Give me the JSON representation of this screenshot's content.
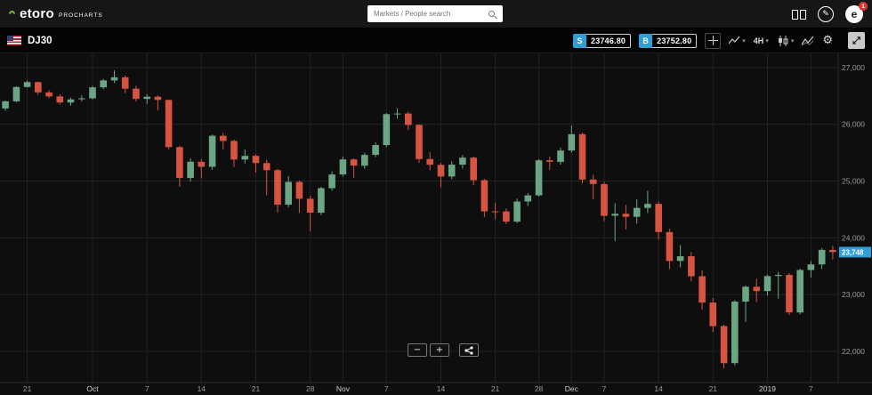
{
  "topbar": {
    "logo": "etoro",
    "logo_sub": "PROCHARTS",
    "search_placeholder": "Markets / People search",
    "profile_initial": "e",
    "notification_count": "1"
  },
  "instrument_bar": {
    "symbol": "DJ30",
    "sell_label": "S",
    "sell_price": "23746.80",
    "buy_label": "B",
    "buy_price": "23752.80",
    "timeframe": "4H"
  },
  "icons": {
    "chevron_down": "▾",
    "gear": "⚙",
    "expand": "⤢",
    "minus": "−",
    "plus": "+",
    "pencil": "✎"
  },
  "colors": {
    "accent_blue": "#2f9fd6",
    "up": "#6ba583",
    "down": "#d75442",
    "grid": "#232323",
    "bg": "#0e0e0e",
    "brand_green": "#6fbe44",
    "badge_red": "#e0362c"
  },
  "chart_data": {
    "type": "candlestick",
    "symbol": "DJ30",
    "timeframe": "4H",
    "price_range": [
      21450,
      27250
    ],
    "current_price": 23748,
    "current_price_label": "23,748",
    "y_ticks": [
      27000,
      26000,
      25000,
      24000,
      23000,
      22000
    ],
    "y_tick_labels": [
      "27,000",
      "26,000",
      "25,000",
      "24,000",
      "23,000",
      "22,000"
    ],
    "x_ticks": [
      {
        "label": "21",
        "i": 2
      },
      {
        "label": "Oct",
        "i": 8
      },
      {
        "label": "7",
        "i": 13
      },
      {
        "label": "14",
        "i": 18
      },
      {
        "label": "21",
        "i": 23
      },
      {
        "label": "28",
        "i": 28
      },
      {
        "label": "Nov",
        "i": 31
      },
      {
        "label": "7",
        "i": 35
      },
      {
        "label": "14",
        "i": 40
      },
      {
        "label": "21",
        "i": 45
      },
      {
        "label": "28",
        "i": 49
      },
      {
        "label": "Dec",
        "i": 52
      },
      {
        "label": "7",
        "i": 55
      },
      {
        "label": "14",
        "i": 60
      },
      {
        "label": "21",
        "i": 65
      },
      {
        "label": "2019",
        "i": 70
      },
      {
        "label": "7",
        "i": 74
      }
    ],
    "candles": [
      [
        26280,
        26420,
        26240,
        26405
      ],
      [
        26405,
        26670,
        26390,
        26657
      ],
      [
        26657,
        26770,
        26650,
        26743
      ],
      [
        26743,
        26750,
        26520,
        26562
      ],
      [
        26562,
        26600,
        26460,
        26492
      ],
      [
        26492,
        26530,
        26350,
        26385
      ],
      [
        26385,
        26470,
        26330,
        26440
      ],
      [
        26440,
        26510,
        26400,
        26458
      ],
      [
        26458,
        26680,
        26440,
        26651
      ],
      [
        26651,
        26800,
        26620,
        26773
      ],
      [
        26773,
        26951,
        26730,
        26828
      ],
      [
        26828,
        26860,
        26550,
        26627
      ],
      [
        26627,
        26680,
        26400,
        26447
      ],
      [
        26447,
        26530,
        26360,
        26486
      ],
      [
        26486,
        26510,
        26250,
        26430
      ],
      [
        26430,
        26440,
        25560,
        25599
      ],
      [
        25599,
        25620,
        24900,
        25053
      ],
      [
        25053,
        25400,
        24990,
        25340
      ],
      [
        25340,
        25390,
        25050,
        25251
      ],
      [
        25251,
        25820,
        25200,
        25798
      ],
      [
        25798,
        25850,
        25560,
        25707
      ],
      [
        25707,
        25730,
        25250,
        25379
      ],
      [
        25379,
        25560,
        25310,
        25444
      ],
      [
        25444,
        25470,
        25150,
        25317
      ],
      [
        25317,
        25380,
        24750,
        25191
      ],
      [
        25191,
        25220,
        24450,
        24584
      ],
      [
        24584,
        25090,
        24540,
        24985
      ],
      [
        24985,
        25010,
        24440,
        24688
      ],
      [
        24688,
        24740,
        24120,
        24443
      ],
      [
        24443,
        24900,
        24400,
        24875
      ],
      [
        24875,
        25170,
        24830,
        25116
      ],
      [
        25116,
        25430,
        25080,
        25381
      ],
      [
        25381,
        25400,
        25060,
        25271
      ],
      [
        25271,
        25500,
        25220,
        25462
      ],
      [
        25462,
        25680,
        25420,
        25635
      ],
      [
        25635,
        26200,
        25600,
        26180
      ],
      [
        26180,
        26280,
        26100,
        26191
      ],
      [
        26191,
        26220,
        25900,
        25989
      ],
      [
        25989,
        26000,
        25320,
        25387
      ],
      [
        25387,
        25510,
        25190,
        25286
      ],
      [
        25286,
        25320,
        24890,
        25081
      ],
      [
        25081,
        25350,
        25030,
        25289
      ],
      [
        25289,
        25460,
        25220,
        25413
      ],
      [
        25413,
        25430,
        24930,
        25017
      ],
      [
        25017,
        25040,
        24370,
        24466
      ],
      [
        24466,
        24620,
        24330,
        24465
      ],
      [
        24465,
        24520,
        24240,
        24286
      ],
      [
        24286,
        24690,
        24260,
        24640
      ],
      [
        24640,
        24790,
        24560,
        24748
      ],
      [
        24748,
        25390,
        24730,
        25366
      ],
      [
        25366,
        25430,
        25200,
        25339
      ],
      [
        25339,
        25590,
        25290,
        25538
      ],
      [
        25538,
        25980,
        25500,
        25826
      ],
      [
        25826,
        25850,
        24960,
        25027
      ],
      [
        25027,
        25110,
        24680,
        24948
      ],
      [
        24948,
        24990,
        24290,
        24389
      ],
      [
        24389,
        24610,
        23940,
        24423
      ],
      [
        24423,
        24580,
        24150,
        24370
      ],
      [
        24370,
        24680,
        24250,
        24527
      ],
      [
        24527,
        24830,
        24440,
        24597
      ],
      [
        24597,
        24640,
        23970,
        24101
      ],
      [
        24101,
        24160,
        23450,
        23593
      ],
      [
        23593,
        23870,
        23480,
        23676
      ],
      [
        23676,
        23750,
        23230,
        23324
      ],
      [
        23324,
        23430,
        22740,
        22860
      ],
      [
        22860,
        22940,
        22340,
        22445
      ],
      [
        22445,
        22470,
        21700,
        21792
      ],
      [
        21792,
        22900,
        21750,
        22878
      ],
      [
        22878,
        23160,
        22520,
        23139
      ],
      [
        23139,
        23280,
        22870,
        23062
      ],
      [
        23062,
        23350,
        22980,
        23327
      ],
      [
        23327,
        23400,
        22930,
        23346
      ],
      [
        23346,
        23380,
        22640,
        22686
      ],
      [
        22686,
        23460,
        22650,
        23433
      ],
      [
        23433,
        23590,
        23300,
        23531
      ],
      [
        23531,
        23820,
        23450,
        23787
      ],
      [
        23787,
        23860,
        23620,
        23748
      ]
    ]
  }
}
